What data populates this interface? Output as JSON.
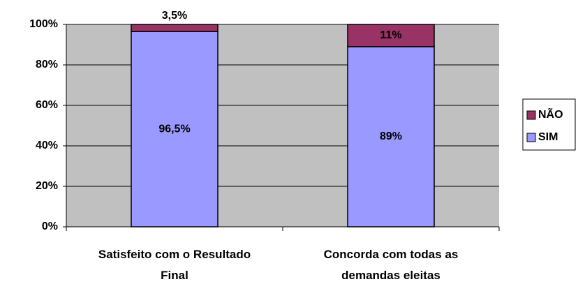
{
  "chart_data": {
    "type": "bar",
    "stacked": true,
    "categories": [
      "Satisfeito com o Resultado Final",
      "Concorda com todas as demandas eleitas"
    ],
    "series": [
      {
        "name": "SIM",
        "color": "#9999ff",
        "values": [
          96.5,
          89
        ],
        "value_labels": [
          "96,5%",
          "89%"
        ]
      },
      {
        "name": "NÃO",
        "color": "#993366",
        "values": [
          3.5,
          11
        ],
        "value_labels": [
          "3,5%",
          "11%"
        ]
      }
    ],
    "ylim": [
      0,
      100
    ],
    "yticks": [
      {
        "value": 0,
        "label": "0%"
      },
      {
        "value": 20,
        "label": "20%"
      },
      {
        "value": 40,
        "label": "40%"
      },
      {
        "value": 60,
        "label": "60%"
      },
      {
        "value": 80,
        "label": "80%"
      },
      {
        "value": 100,
        "label": "100%"
      }
    ],
    "grid": true,
    "legend": "right",
    "plot_background": "#c0c0c0"
  }
}
